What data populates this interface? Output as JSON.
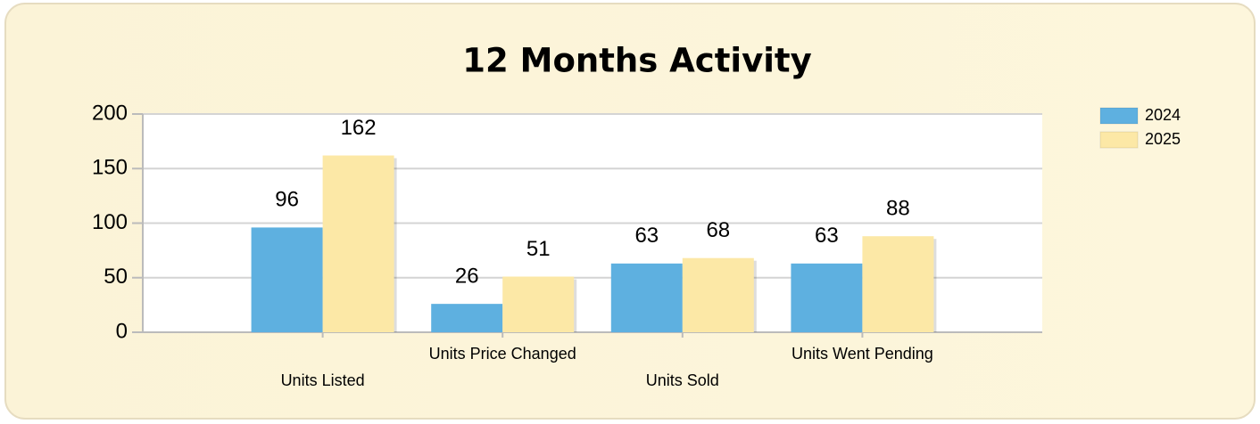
{
  "chart_data": {
    "type": "bar",
    "title": "12 Months Activity",
    "categories": [
      "Units Listed",
      "Units Price Changed",
      "Units Sold",
      "Units Went Pending"
    ],
    "series": [
      {
        "name": "2024",
        "color": "#5eb0e0",
        "values": [
          96,
          26,
          63,
          63
        ]
      },
      {
        "name": "2025",
        "color": "#fce8a6",
        "values": [
          162,
          51,
          68,
          88
        ]
      }
    ],
    "ylim": [
      0,
      200
    ],
    "yticks": [
      0,
      50,
      100,
      150,
      200
    ],
    "grid": true,
    "legend": "right"
  }
}
